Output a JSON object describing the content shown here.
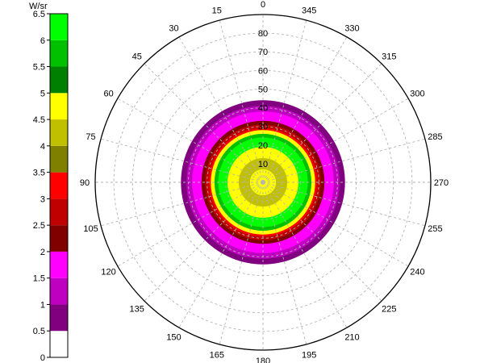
{
  "chart_data": {
    "type": "heatmap",
    "projection": "polar",
    "colorbar": {
      "unit_label": "W/sr",
      "tick_labels": [
        "0",
        "0.5",
        "1",
        "1.5",
        "2",
        "2.5",
        "3",
        "3.5",
        "4",
        "4.5",
        "5",
        "5.5",
        "6",
        "6.5"
      ],
      "bins": [
        {
          "min": 0,
          "max": 0.5,
          "color": "#ffffff"
        },
        {
          "min": 0.5,
          "max": 1,
          "color": "#800080"
        },
        {
          "min": 1,
          "max": 1.5,
          "color": "#c000c0"
        },
        {
          "min": 1.5,
          "max": 2,
          "color": "#ff00ff"
        },
        {
          "min": 2,
          "max": 2.5,
          "color": "#800000"
        },
        {
          "min": 2.5,
          "max": 3,
          "color": "#c00000"
        },
        {
          "min": 3,
          "max": 3.5,
          "color": "#ff0000"
        },
        {
          "min": 3.5,
          "max": 4,
          "color": "#808000"
        },
        {
          "min": 4,
          "max": 4.5,
          "color": "#c0c000"
        },
        {
          "min": 4.5,
          "max": 5,
          "color": "#ffff00"
        },
        {
          "min": 5,
          "max": 5.5,
          "color": "#008000"
        },
        {
          "min": 5.5,
          "max": 6,
          "color": "#00c000"
        },
        {
          "min": 6,
          "max": 6.5,
          "color": "#00ff00"
        }
      ]
    },
    "radial_axis": {
      "range": [
        0,
        90
      ],
      "tick_labels": [
        "10",
        "20",
        "30",
        "40",
        "50",
        "60",
        "70",
        "80"
      ],
      "tick_values": [
        10,
        20,
        30,
        40,
        50,
        60,
        70,
        80
      ]
    },
    "angular_axis": {
      "direction": "counterclockwise",
      "zero_at": "top",
      "tick_values": [
        0,
        15,
        30,
        45,
        60,
        75,
        90,
        105,
        120,
        135,
        150,
        165,
        180,
        195,
        210,
        225,
        240,
        255,
        270,
        285,
        300,
        315,
        330,
        345
      ],
      "tick_labels": [
        "0",
        "15",
        "30",
        "45",
        "60",
        "75",
        "90",
        "105",
        "120",
        "135",
        "150",
        "165",
        "180",
        "195",
        "210",
        "225",
        "240",
        "255",
        "270",
        "285",
        "300",
        "315",
        "330",
        "345"
      ]
    },
    "grid": true,
    "rings": [
      {
        "r_outer": 44,
        "color": "#800080"
      },
      {
        "r_outer": 41,
        "color": "#c000c0"
      },
      {
        "r_outer": 38,
        "color": "#ff00ff"
      },
      {
        "r_outer": 33,
        "color": "#800000"
      },
      {
        "r_outer": 31,
        "color": "#c00000"
      },
      {
        "r_outer": 29,
        "color": "#ff0000"
      },
      {
        "r_outer": 28,
        "color": "#ffff00"
      },
      {
        "r_outer": 26,
        "color": "#00c000"
      },
      {
        "r_outer": 24,
        "color": "#00ff00"
      },
      {
        "r_outer": 19,
        "color": "#ffff00"
      },
      {
        "r_outer": 13,
        "color": "#c0c000"
      },
      {
        "r_outer": 7,
        "color": "#ffff00"
      }
    ]
  }
}
